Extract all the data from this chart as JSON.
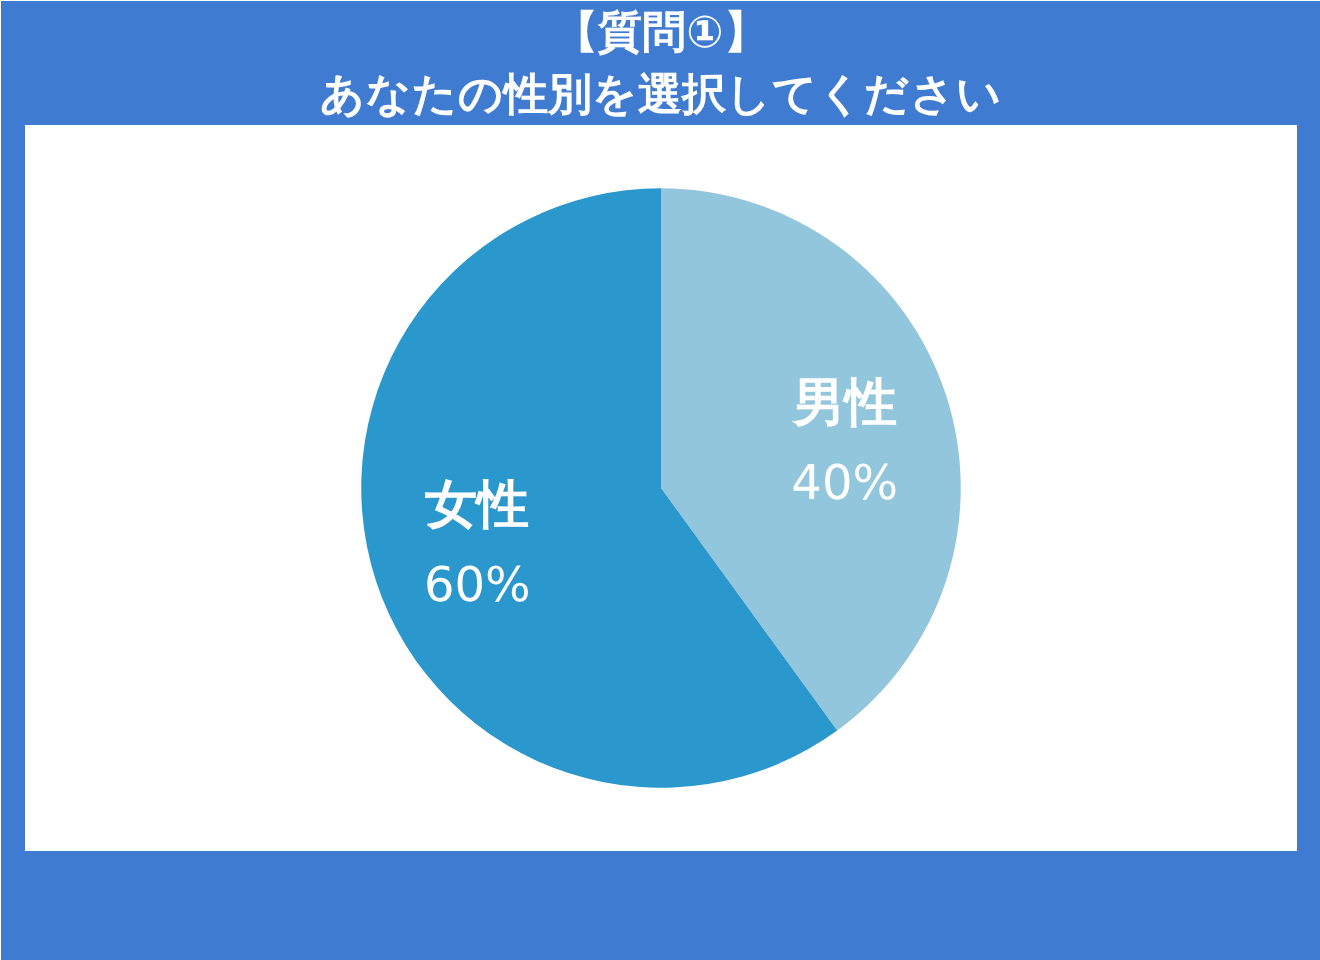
{
  "chart_data": {
    "type": "pie",
    "title": "【質問①】",
    "subtitle": "あなたの性別を選択してください",
    "categories": [
      "男性",
      "女性"
    ],
    "values": [
      40,
      60
    ],
    "value_labels": [
      "40%",
      "60%"
    ],
    "colors": [
      "#92c6dc",
      "#2a97cd"
    ]
  }
}
